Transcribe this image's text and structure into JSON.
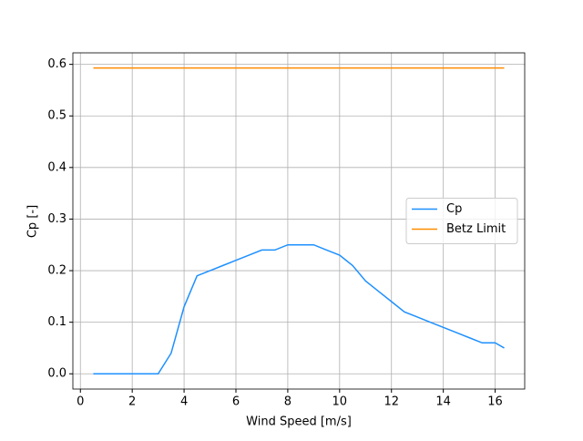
{
  "chart_data": {
    "type": "line",
    "x_label": "Wind Speed [m/s]",
    "y_label": "Cp [-]",
    "x": [
      0.5,
      1,
      1.5,
      2,
      2.5,
      3,
      3.5,
      4,
      4.5,
      5,
      5.5,
      6,
      6.5,
      7,
      7.5,
      8,
      8.5,
      9,
      9.5,
      10,
      10.5,
      11,
      11.5,
      12,
      12.5,
      13,
      13.5,
      14,
      14.5,
      15,
      15.5,
      16,
      16.35
    ],
    "series": [
      {
        "name": "Cp",
        "color": "#1e90ff",
        "values": [
          0,
          0,
          0,
          0,
          0,
          0,
          0.04,
          0.13,
          0.19,
          0.2,
          0.21,
          0.22,
          0.23,
          0.24,
          0.24,
          0.25,
          0.25,
          0.25,
          0.24,
          0.23,
          0.21,
          0.18,
          0.16,
          0.14,
          0.12,
          0.11,
          0.1,
          0.09,
          0.08,
          0.07,
          0.06,
          0.06,
          0.05
        ]
      },
      {
        "name": "Betz Limit",
        "color": "#ff8c00",
        "values": [
          0.593,
          0.593,
          0.593,
          0.593,
          0.593,
          0.593,
          0.593,
          0.593,
          0.593,
          0.593,
          0.593,
          0.593,
          0.593,
          0.593,
          0.593,
          0.593,
          0.593,
          0.593,
          0.593,
          0.593,
          0.593,
          0.593,
          0.593,
          0.593,
          0.593,
          0.593,
          0.593,
          0.593,
          0.593,
          0.593,
          0.593,
          0.593,
          0.593
        ]
      }
    ],
    "xlim": [
      -0.29,
      17.14
    ],
    "ylim": [
      -0.0296,
      0.6223
    ],
    "xticks": [
      0,
      2,
      4,
      6,
      8,
      10,
      12,
      14,
      16
    ],
    "yticks": [
      {
        "value": 0,
        "label": "0.0"
      },
      0.1,
      0.2,
      0.3,
      0.4,
      0.5,
      0.6
    ],
    "grid": true,
    "legend": "center right"
  }
}
